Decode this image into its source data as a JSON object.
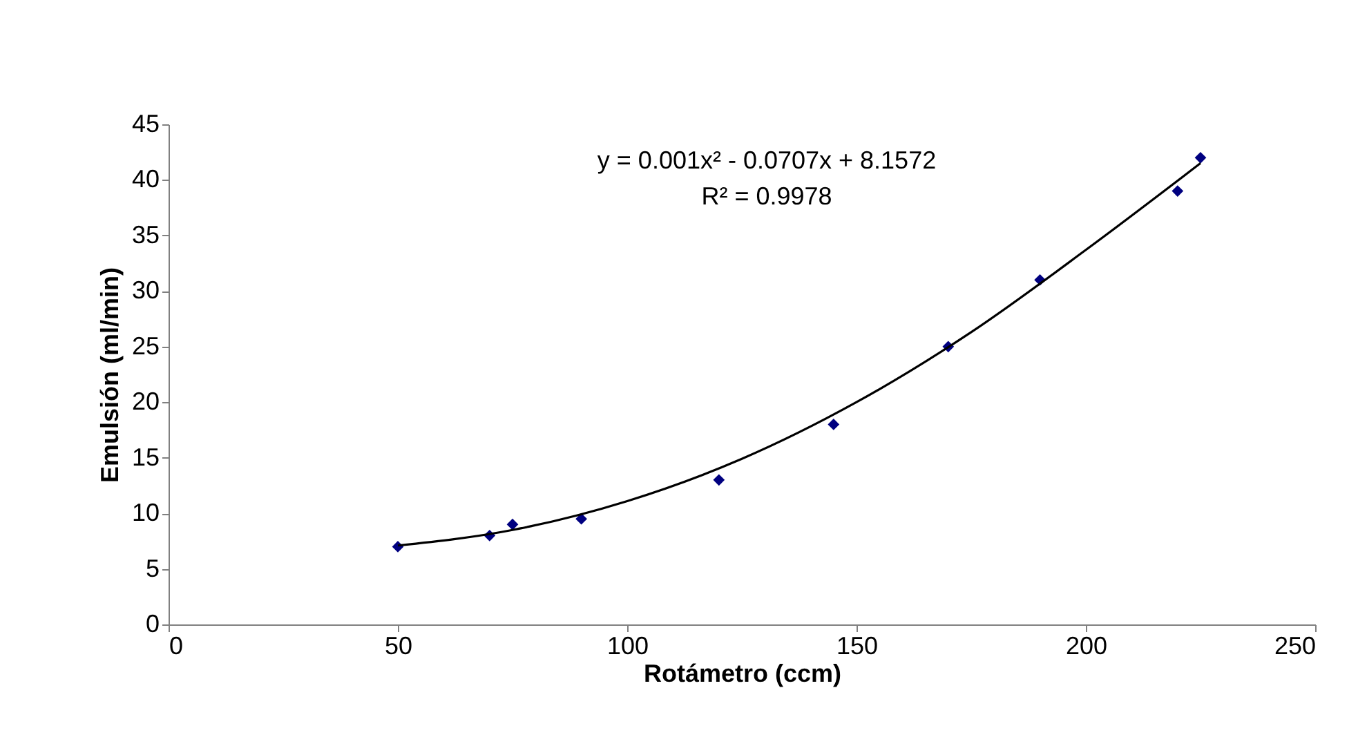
{
  "chart_data": {
    "type": "scatter",
    "xlabel": "Rotámetro (ccm)",
    "ylabel": "Emulsión (ml/min)",
    "x": [
      50,
      70,
      75,
      90,
      120,
      145,
      170,
      190,
      220,
      225
    ],
    "series": [
      {
        "color": "#000080",
        "marker": "diamond",
        "values": [
          7,
          8,
          9,
          9.5,
          13,
          18,
          25,
          31,
          39,
          42
        ]
      },
      {
        "type": "line",
        "color": "#000000",
        "line_style": "solid",
        "x": [
          50,
          75,
          100,
          125,
          150,
          175,
          200,
          225
        ],
        "values": [
          7.1,
          8.5,
          11.1,
          14.9,
          20,
          26.3,
          33.7,
          41.5
        ]
      }
    ],
    "annotations": [
      "y = 0.001x² - 0.0707x + 8.1572",
      "R² = 0.9978"
    ],
    "xlim": [
      0,
      250
    ],
    "xticks": [
      0,
      50,
      100,
      150,
      200,
      250
    ],
    "ylim": [
      0,
      45
    ],
    "yticks": [
      0,
      5,
      10,
      15,
      20,
      25,
      30,
      35,
      40,
      45
    ],
    "grid": false
  }
}
